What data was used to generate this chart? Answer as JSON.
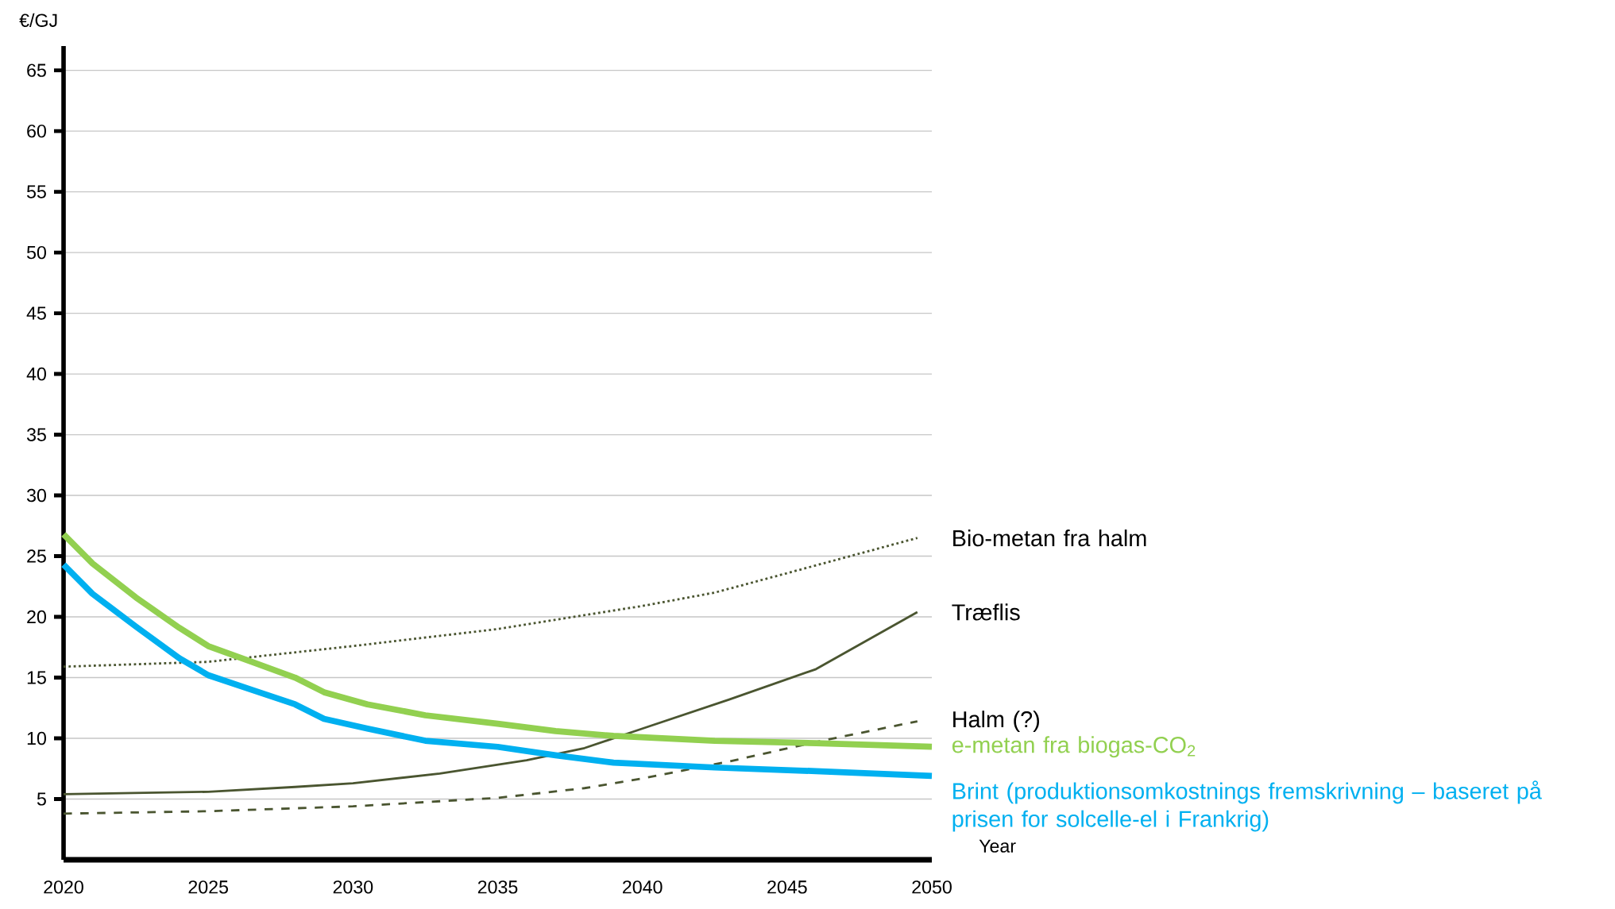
{
  "chart_data": {
    "type": "line",
    "xlabel": "Year",
    "ylabel": "€/GJ",
    "xlim": [
      2020,
      2050
    ],
    "xticks": [
      2020,
      2025,
      2030,
      2035,
      2040,
      2045,
      2050
    ],
    "ylim": [
      0,
      67
    ],
    "yticks": [
      5,
      10,
      15,
      20,
      25,
      30,
      35,
      40,
      45,
      50,
      55,
      60,
      65
    ],
    "grid": "y",
    "marker": "none",
    "series": [
      {
        "name": "Bio-metan fra halm",
        "color": "#4a5530",
        "line_style": "dotted",
        "x": [
          2020,
          2025,
          2030,
          2035,
          2040,
          2042.5,
          2045,
          2049.5
        ],
        "values": [
          15.9,
          16.3,
          17.6,
          19.0,
          20.9,
          22.0,
          23.6,
          26.5
        ]
      },
      {
        "name": "Træflis",
        "color": "#4a5530",
        "line_style": "solid",
        "x": [
          2020,
          2025,
          2028,
          2030,
          2033,
          2036,
          2038,
          2040,
          2043,
          2046,
          2049.5
        ],
        "values": [
          5.4,
          5.6,
          6.0,
          6.3,
          7.1,
          8.2,
          9.2,
          10.8,
          13.2,
          15.7,
          20.4
        ]
      },
      {
        "name": "Halm (?)",
        "color": "#4a5530",
        "line_style": "dashed",
        "x": [
          2020,
          2025,
          2030,
          2035,
          2038,
          2040,
          2043,
          2046,
          2049.5
        ],
        "values": [
          3.8,
          4.0,
          4.4,
          5.1,
          5.9,
          6.7,
          8.1,
          9.7,
          11.4
        ]
      },
      {
        "name": "e-metan fra biogas-CO$_{2}$",
        "color": "#92d050",
        "line_style": "solid",
        "x": [
          2020,
          2021,
          2022.5,
          2024,
          2025,
          2026.5,
          2028,
          2029,
          2030.5,
          2032.5,
          2035,
          2037,
          2039,
          2042.5,
          2046,
          2050
        ],
        "values": [
          26.8,
          24.4,
          21.6,
          19.1,
          17.6,
          16.3,
          15.0,
          13.8,
          12.8,
          11.9,
          11.2,
          10.6,
          10.2,
          9.8,
          9.6,
          9.3
        ]
      },
      {
        "name": "Brint (produktionsomkostnings fremskrivning – baseret på prisen for solcelle-el i Frankrig)",
        "color": "#00b0f0",
        "line_style": "solid",
        "x": [
          2020,
          2021,
          2022.5,
          2024,
          2025,
          2026.5,
          2028,
          2029,
          2030.5,
          2032.5,
          2035,
          2037,
          2039,
          2042.5,
          2046,
          2050
        ],
        "values": [
          24.3,
          21.9,
          19.2,
          16.6,
          15.2,
          14.0,
          12.8,
          11.6,
          10.8,
          9.8,
          9.3,
          8.6,
          8.0,
          7.6,
          7.3,
          6.9
        ]
      }
    ]
  }
}
